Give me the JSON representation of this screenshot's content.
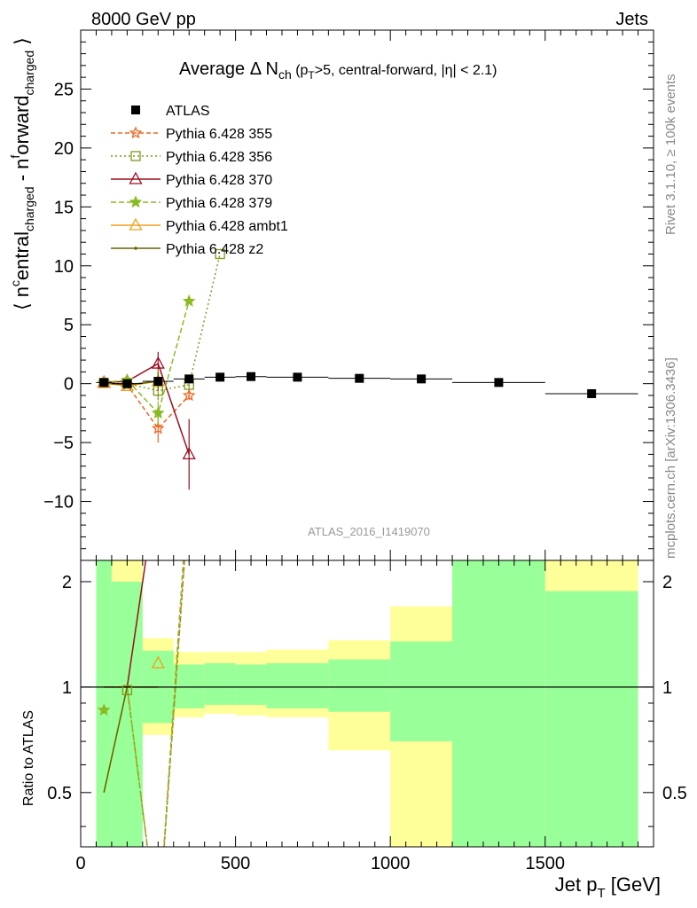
{
  "header": {
    "left": "8000 GeV pp",
    "right": "Jets"
  },
  "side_labels": {
    "rivet": "Rivet 3.1.10, ≥ 100k events",
    "mcplots": "mcplots.cern.ch [arXiv:1306.3436]"
  },
  "chart_data": {
    "type": "scatter",
    "title": "Average Δ N_ch (p_T>5, central-forward, |η| < 2.1)",
    "watermark": "ATLAS_2016_I1419070",
    "xlabel": "Jet p_T [GeV]",
    "ylabel": "⟨ n^central_charged - n^forward_charged ⟩",
    "xlim": [
      0,
      1850
    ],
    "ylim": [
      -15,
      30
    ],
    "xticks": [
      0,
      500,
      1000,
      1500
    ],
    "yticks": [
      -10,
      -5,
      0,
      5,
      10,
      15,
      20,
      25
    ],
    "ytick_labels": [
      "−10",
      "−5",
      "0",
      "5",
      "10",
      "15",
      "20",
      "25"
    ],
    "legend_position": "top-left",
    "data": {
      "name": "ATLAS",
      "color": "#000000",
      "x": [
        75,
        150,
        250,
        350,
        450,
        550,
        700,
        900,
        1100,
        1350,
        1650
      ],
      "xerr": [
        25,
        50,
        50,
        50,
        50,
        50,
        100,
        100,
        100,
        150,
        150
      ],
      "y": [
        0.1,
        0.0,
        0.2,
        0.4,
        0.55,
        0.6,
        0.55,
        0.45,
        0.4,
        0.1,
        -0.85
      ]
    },
    "series": [
      {
        "name": "Pythia 6.428 355",
        "color": "#ee6622",
        "dash": "5,3",
        "marker": "star-open",
        "x": [
          75,
          150,
          250,
          350
        ],
        "y": [
          0.1,
          -0.1,
          -3.8,
          -1.0
        ],
        "yerr": [
          0.2,
          0.2,
          1.2,
          0.4
        ]
      },
      {
        "name": "Pythia 6.428 356",
        "color": "#7f9a1c",
        "dash": "2,3",
        "marker": "square-open",
        "x": [
          75,
          150,
          250,
          350,
          450
        ],
        "y": [
          0.05,
          0.0,
          -0.6,
          -0.1,
          11.0
        ],
        "yerr": [
          0.2,
          0.2,
          0.8,
          0.4,
          0
        ]
      },
      {
        "name": "Pythia 6.428 370",
        "color": "#9b1020",
        "dash": "",
        "marker": "triangle-open",
        "x": [
          75,
          150,
          250,
          350
        ],
        "y": [
          0.1,
          0.2,
          1.7,
          -6.0
        ],
        "yerr": [
          0.2,
          0.2,
          1.0,
          3.0
        ]
      },
      {
        "name": "Pythia 6.428 379",
        "color": "#8bbb22",
        "dash": "6,3",
        "marker": "star",
        "x": [
          75,
          150,
          250,
          350
        ],
        "y": [
          0.1,
          0.3,
          -2.5,
          7.0
        ],
        "yerr": [
          0.2,
          0.2,
          1.0,
          0
        ]
      },
      {
        "name": "Pythia 6.428 ambt1",
        "color": "#f0a020",
        "dash": "",
        "marker": "triangle-open",
        "x": [
          75,
          150,
          250
        ],
        "y": [
          0.05,
          -0.2,
          0.2
        ],
        "yerr": [
          0.2,
          0.2,
          1.0
        ]
      },
      {
        "name": "Pythia 6.428 z2",
        "color": "#666600",
        "dash": "",
        "marker": "dot",
        "x": [
          75,
          150,
          250
        ],
        "y": [
          0.05,
          -0.1,
          0.2
        ],
        "yerr": [
          0.2,
          0.2,
          0.8
        ]
      }
    ],
    "ratio": {
      "ylabel": "Ratio to ATLAS",
      "ylim": [
        0.35,
        2.3
      ],
      "yticks": [
        0.5,
        1,
        2
      ],
      "ytick_labels": [
        "0.5",
        "1",
        "2"
      ],
      "band_yellow_color": "#ffff99",
      "band_green_color": "#99ff99",
      "bands": [
        {
          "xlo": 50,
          "xhi": 100,
          "y_lo": 0.35,
          "y_hi": 2.3,
          "g_lo": 0.35,
          "g_hi": 2.3
        },
        {
          "xlo": 100,
          "xhi": 200,
          "y_lo": 0.35,
          "y_hi": 2.3,
          "g_lo": 0.35,
          "g_hi": 2.0
        },
        {
          "xlo": 200,
          "xhi": 300,
          "y_lo": 0.73,
          "y_hi": 1.38,
          "g_lo": 0.79,
          "g_hi": 1.27
        },
        {
          "xlo": 300,
          "xhi": 400,
          "y_lo": 0.82,
          "y_hi": 1.26,
          "g_lo": 0.87,
          "g_hi": 1.16
        },
        {
          "xlo": 400,
          "xhi": 500,
          "y_lo": 0.84,
          "y_hi": 1.26,
          "g_lo": 0.89,
          "g_hi": 1.17
        },
        {
          "xlo": 500,
          "xhi": 600,
          "y_lo": 0.83,
          "y_hi": 1.26,
          "g_lo": 0.89,
          "g_hi": 1.16
        },
        {
          "xlo": 600,
          "xhi": 800,
          "y_lo": 0.82,
          "y_hi": 1.28,
          "g_lo": 0.87,
          "g_hi": 1.17
        },
        {
          "xlo": 800,
          "xhi": 1000,
          "y_lo": 0.66,
          "y_hi": 1.36,
          "g_lo": 0.85,
          "g_hi": 1.2
        },
        {
          "xlo": 1000,
          "xhi": 1200,
          "y_lo": 0.35,
          "y_hi": 1.7,
          "g_lo": 0.7,
          "g_hi": 1.35
        },
        {
          "xlo": 1200,
          "xhi": 1500,
          "y_lo": 0.35,
          "y_hi": 2.3,
          "g_lo": 0.35,
          "g_hi": 2.3
        },
        {
          "xlo": 1500,
          "xhi": 1800,
          "y_lo": 0.35,
          "y_hi": 2.3,
          "g_lo": 0.35,
          "g_hi": 1.88
        }
      ],
      "markers": [
        {
          "series": "Pythia 6.428 356",
          "x": 150,
          "y": 0.98,
          "marker": "square-open",
          "color": "#7f9a1c"
        },
        {
          "series": "Pythia 6.428 379",
          "x": 75,
          "y": 0.86,
          "marker": "star",
          "color": "#8bbb22"
        },
        {
          "series": "Pythia 6.428 ambt1",
          "x": 250,
          "y": 1.17,
          "marker": "triangle-open",
          "color": "#f0a020"
        }
      ]
    }
  }
}
